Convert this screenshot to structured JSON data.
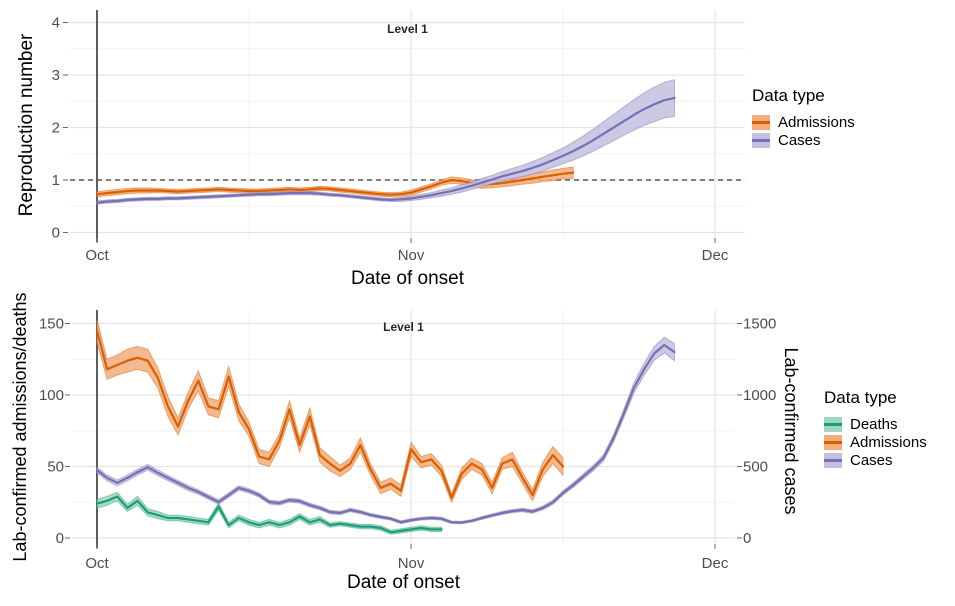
{
  "style": {
    "background": "#ffffff",
    "grid_major": "#e4e4e4",
    "grid_minor": "#f2f2f2",
    "vline_color": "#4d4d4d",
    "dashed_line_color": "#595959",
    "tick_color": "#666666",
    "tick_text_color": "#4d4d4d"
  },
  "chart_data": [
    {
      "type": "line",
      "title": "Level 1",
      "xlabel": "Date of onset",
      "ylabel": "Reproduction number",
      "x_start_date": "Oct 1",
      "x_tick_labels": [
        "Oct",
        "Nov",
        "Dec"
      ],
      "x_tick_days": [
        0,
        31,
        61
      ],
      "x_minor_days": [
        15,
        46
      ],
      "ylim": [
        0,
        4
      ],
      "y_ticks": [
        0,
        1,
        2,
        3,
        4
      ],
      "y_minor": [
        0.5,
        1.5,
        2.5,
        3.5
      ],
      "hline_dashed_at": 1,
      "vline_at_day": 0,
      "grid": true,
      "legend": {
        "title": "Data type",
        "position": "right",
        "items": [
          {
            "label": "Admissions",
            "line": "#D95F02",
            "fill": "#F2AD7A"
          },
          {
            "label": "Cases",
            "line": "#7570B3",
            "fill": "#C2BFDF"
          }
        ]
      },
      "series": [
        {
          "name": "Admissions",
          "axis": "left",
          "line": "#D95F02",
          "fill": "#F2AD7A",
          "start_day": 0,
          "values": [
            0.73,
            0.75,
            0.77,
            0.79,
            0.8,
            0.8,
            0.8,
            0.79,
            0.78,
            0.79,
            0.8,
            0.81,
            0.82,
            0.81,
            0.8,
            0.79,
            0.79,
            0.8,
            0.81,
            0.82,
            0.81,
            0.82,
            0.84,
            0.83,
            0.81,
            0.79,
            0.77,
            0.75,
            0.73,
            0.72,
            0.73,
            0.76,
            0.82,
            0.88,
            0.95,
            1.0,
            0.98,
            0.94,
            0.91,
            0.92,
            0.94,
            0.97,
            1.0,
            1.03,
            1.06,
            1.09,
            1.12,
            1.14
          ],
          "band": [
            0.05,
            0.05,
            0.05,
            0.05,
            0.05,
            0.05,
            0.04,
            0.04,
            0.04,
            0.04,
            0.04,
            0.04,
            0.04,
            0.04,
            0.04,
            0.04,
            0.04,
            0.04,
            0.04,
            0.04,
            0.04,
            0.04,
            0.04,
            0.04,
            0.04,
            0.04,
            0.04,
            0.04,
            0.04,
            0.04,
            0.04,
            0.05,
            0.05,
            0.05,
            0.05,
            0.06,
            0.06,
            0.06,
            0.07,
            0.07,
            0.07,
            0.08,
            0.08,
            0.09,
            0.09,
            0.1,
            0.1,
            0.11
          ]
        },
        {
          "name": "Cases",
          "axis": "left",
          "line": "#7570B3",
          "fill": "#C2BFDF",
          "start_day": 0,
          "values": [
            0.57,
            0.59,
            0.6,
            0.62,
            0.63,
            0.64,
            0.64,
            0.65,
            0.65,
            0.66,
            0.67,
            0.68,
            0.69,
            0.7,
            0.71,
            0.72,
            0.73,
            0.73,
            0.74,
            0.75,
            0.75,
            0.75,
            0.74,
            0.72,
            0.71,
            0.69,
            0.67,
            0.65,
            0.63,
            0.62,
            0.63,
            0.65,
            0.68,
            0.71,
            0.75,
            0.79,
            0.84,
            0.89,
            0.95,
            1.01,
            1.07,
            1.12,
            1.17,
            1.23,
            1.3,
            1.38,
            1.46,
            1.55,
            1.65,
            1.76,
            1.88,
            2.0,
            2.12,
            2.24,
            2.35,
            2.44,
            2.52,
            2.56
          ],
          "band": [
            0.03,
            0.03,
            0.03,
            0.03,
            0.03,
            0.03,
            0.03,
            0.03,
            0.03,
            0.03,
            0.03,
            0.03,
            0.03,
            0.03,
            0.03,
            0.03,
            0.03,
            0.03,
            0.03,
            0.03,
            0.03,
            0.03,
            0.03,
            0.03,
            0.03,
            0.03,
            0.03,
            0.03,
            0.03,
            0.03,
            0.04,
            0.04,
            0.05,
            0.05,
            0.06,
            0.06,
            0.07,
            0.07,
            0.08,
            0.08,
            0.09,
            0.1,
            0.11,
            0.12,
            0.13,
            0.14,
            0.15,
            0.17,
            0.19,
            0.21,
            0.23,
            0.25,
            0.27,
            0.29,
            0.31,
            0.33,
            0.34,
            0.35
          ]
        }
      ]
    },
    {
      "type": "line",
      "title": "Level 1",
      "xlabel": "Date of onset",
      "ylabel": "Lab-confirmed admissions/deaths",
      "y2label": "Lab-confirmed cases",
      "x_start_date": "Oct 1",
      "x_tick_labels": [
        "Oct",
        "Nov",
        "Dec"
      ],
      "x_tick_days": [
        0,
        31,
        61
      ],
      "x_minor_days": [
        15,
        46
      ],
      "ylim": [
        0,
        160
      ],
      "y_ticks": [
        0,
        50,
        100,
        150
      ],
      "y_minor": [
        25,
        75,
        125
      ],
      "y2lim": [
        0,
        1600
      ],
      "y2_ticks": [
        0,
        500,
        1000,
        1500
      ],
      "hline_dashed_at": null,
      "vline_at_day": 0,
      "grid": true,
      "legend": {
        "title": "Data type",
        "position": "right",
        "items": [
          {
            "label": "Deaths",
            "line": "#1B9E77",
            "fill": "#9CD5C0"
          },
          {
            "label": "Admissions",
            "line": "#D95F02",
            "fill": "#F2AD7A"
          },
          {
            "label": "Cases",
            "line": "#7570B3",
            "fill": "#C2BFDF"
          }
        ]
      },
      "series": [
        {
          "name": "Deaths",
          "axis": "left",
          "line": "#1B9E77",
          "fill": "#9CD5C0",
          "start_day": 0,
          "values": [
            24,
            26,
            29,
            21,
            26,
            18,
            16,
            14,
            14,
            13,
            12,
            11,
            22,
            9,
            14,
            11,
            9,
            11,
            9,
            11,
            15,
            11,
            13,
            9,
            10,
            9,
            8,
            8,
            7,
            4,
            5,
            6,
            7,
            6,
            6
          ],
          "band": [
            3,
            3,
            3,
            2.5,
            3,
            2.5,
            2.5,
            2,
            2,
            2,
            2,
            2,
            2.5,
            2,
            2,
            2,
            2,
            2,
            2,
            2,
            2,
            2,
            2,
            1.5,
            1.5,
            1.5,
            1.5,
            1.5,
            1.5,
            1.5,
            1.5,
            1.5,
            1.5,
            1.5,
            1.5
          ]
        },
        {
          "name": "Admissions",
          "axis": "left",
          "line": "#D95F02",
          "fill": "#F2AD7A",
          "start_day": 0,
          "values": [
            145,
            118,
            121,
            124,
            126,
            124,
            112,
            92,
            78,
            96,
            110,
            92,
            90,
            113,
            88,
            76,
            57,
            55,
            68,
            90,
            65,
            85,
            58,
            52,
            47,
            52,
            65,
            48,
            35,
            38,
            33,
            62,
            53,
            55,
            47,
            28,
            45,
            52,
            48,
            35,
            52,
            55,
            42,
            30,
            48,
            58,
            50
          ],
          "band": [
            8,
            7,
            7,
            8,
            8,
            8,
            7,
            7,
            6,
            6,
            7,
            6,
            6,
            7,
            6,
            5,
            5,
            5,
            5,
            6,
            5,
            6,
            5,
            5,
            4,
            4,
            5,
            4,
            4,
            4,
            4,
            5,
            4,
            4,
            4,
            3,
            4,
            4,
            4,
            4,
            4,
            5,
            4,
            4,
            5,
            6,
            6
          ]
        },
        {
          "name": "Cases",
          "axis": "right",
          "line": "#7570B3",
          "fill": "#C2BFDF",
          "start_day": 0,
          "values": [
            475,
            420,
            385,
            420,
            460,
            495,
            455,
            420,
            385,
            350,
            322,
            287,
            252,
            300,
            350,
            330,
            300,
            252,
            244,
            265,
            258,
            230,
            210,
            182,
            175,
            196,
            182,
            161,
            147,
            135,
            110,
            125,
            135,
            140,
            135,
            110,
            108,
            120,
            140,
            158,
            175,
            188,
            196,
            185,
            210,
            250,
            315,
            370,
            430,
            490,
            560,
            700,
            870,
            1050,
            1180,
            1290,
            1350,
            1300
          ],
          "band": [
            20,
            20,
            20,
            20,
            20,
            20,
            20,
            18,
            18,
            18,
            16,
            16,
            16,
            16,
            16,
            15,
            15,
            14,
            14,
            14,
            14,
            13,
            13,
            12,
            12,
            12,
            12,
            11,
            11,
            10,
            10,
            10,
            10,
            10,
            10,
            9,
            9,
            9,
            10,
            10,
            11,
            11,
            12,
            12,
            13,
            14,
            15,
            16,
            18,
            20,
            22,
            26,
            30,
            36,
            42,
            48,
            55,
            60
          ]
        }
      ]
    }
  ]
}
